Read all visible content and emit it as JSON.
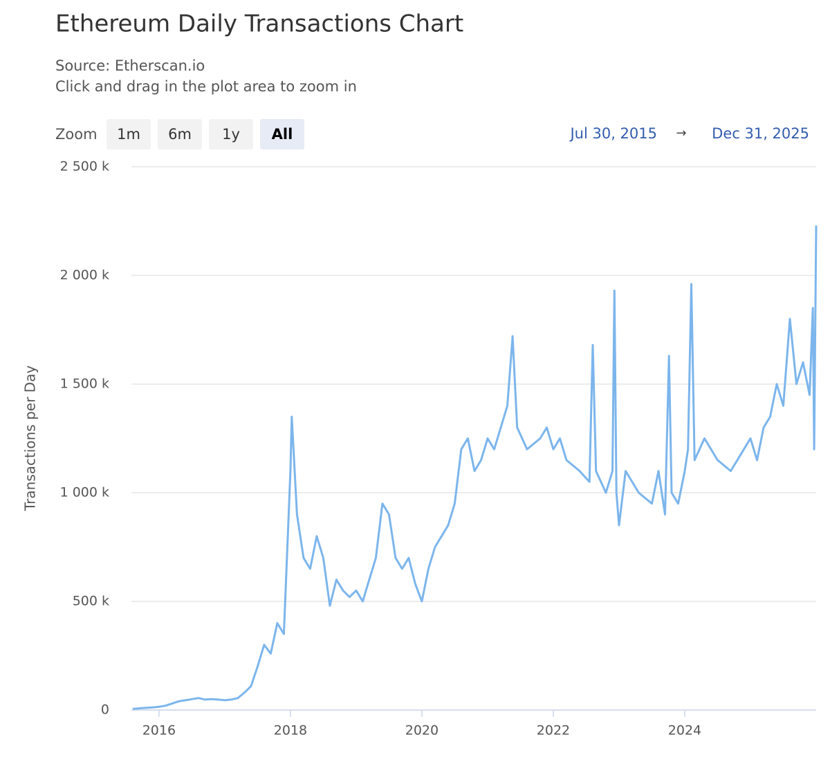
{
  "chart_data": {
    "type": "line",
    "title": "Ethereum Daily Transactions Chart",
    "subtitle": [
      "Source: Etherscan.io",
      "Click and drag in the plot area to zoom in"
    ],
    "y_label": "Transactions per Day",
    "x": [
      2015.6,
      2015.7,
      2015.8,
      2015.9,
      2016.0,
      2016.1,
      2016.2,
      2016.3,
      2016.4,
      2016.5,
      2016.6,
      2016.7,
      2016.8,
      2016.9,
      2017.0,
      2017.1,
      2017.2,
      2017.3,
      2017.4,
      2017.5,
      2017.6,
      2017.7,
      2017.8,
      2017.9,
      2018.0,
      2018.02,
      2018.1,
      2018.2,
      2018.3,
      2018.4,
      2018.5,
      2018.6,
      2018.7,
      2018.8,
      2018.9,
      2019.0,
      2019.1,
      2019.2,
      2019.3,
      2019.4,
      2019.5,
      2019.6,
      2019.7,
      2019.8,
      2019.9,
      2020.0,
      2020.1,
      2020.2,
      2020.3,
      2020.4,
      2020.5,
      2020.6,
      2020.7,
      2020.8,
      2020.9,
      2021.0,
      2021.1,
      2021.2,
      2021.3,
      2021.38,
      2021.45,
      2021.6,
      2021.8,
      2021.9,
      2022.0,
      2022.1,
      2022.2,
      2022.4,
      2022.55,
      2022.6,
      2022.65,
      2022.8,
      2022.9,
      2022.93,
      2022.96,
      2023.0,
      2023.1,
      2023.3,
      2023.5,
      2023.6,
      2023.7,
      2023.76,
      2023.8,
      2023.9,
      2024.0,
      2024.05,
      2024.1,
      2024.15,
      2024.3,
      2024.5,
      2024.7,
      2024.9,
      2025.0,
      2025.1,
      2025.2,
      2025.3,
      2025.4,
      2025.5,
      2025.6,
      2025.7,
      2025.8,
      2025.9,
      2025.95,
      2025.97,
      2026.0
    ],
    "series": [
      {
        "name": "Transactions per Day",
        "color": "#7cb5ec",
        "values": [
          5,
          8,
          10,
          12,
          15,
          20,
          30,
          40,
          45,
          50,
          55,
          48,
          50,
          48,
          45,
          48,
          55,
          80,
          110,
          200,
          300,
          260,
          400,
          350,
          1100,
          1350,
          900,
          700,
          650,
          800,
          700,
          480,
          600,
          550,
          520,
          550,
          500,
          600,
          700,
          950,
          900,
          700,
          650,
          700,
          580,
          500,
          650,
          750,
          800,
          850,
          950,
          1200,
          1250,
          1100,
          1150,
          1250,
          1200,
          1300,
          1400,
          1720,
          1300,
          1200,
          1250,
          1300,
          1200,
          1250,
          1150,
          1100,
          1050,
          1680,
          1100,
          1000,
          1100,
          1930,
          1000,
          850,
          1100,
          1000,
          950,
          1100,
          900,
          1630,
          1000,
          950,
          1100,
          1200,
          1960,
          1150,
          1250,
          1150,
          1100,
          1200,
          1250,
          1150,
          1300,
          1350,
          1500,
          1400,
          1800,
          1500,
          1600,
          1450,
          1850,
          1200,
          2230
        ]
      }
    ],
    "xlim": [
      2015.58,
      2026.0
    ],
    "xticks": [
      2016,
      2018,
      2020,
      2022,
      2024
    ],
    "ylim": [
      0,
      2500
    ],
    "yticks": [
      0,
      {
        "value": 500,
        "label": "500 k"
      },
      {
        "value": 1000,
        "label": "1 000 k"
      },
      {
        "value": 1500,
        "label": "1 500 k"
      },
      {
        "value": 2000,
        "label": "2 000 k"
      },
      {
        "value": 2500,
        "label": "2 500 k"
      }
    ],
    "grid": true
  },
  "controls": {
    "zoom_label": "Zoom",
    "buttons": [
      "1m",
      "6m",
      "1y",
      "All"
    ],
    "range_from": "Jul 30, 2015",
    "range_arrow": "→",
    "range_to": "Dec 31, 2025"
  }
}
